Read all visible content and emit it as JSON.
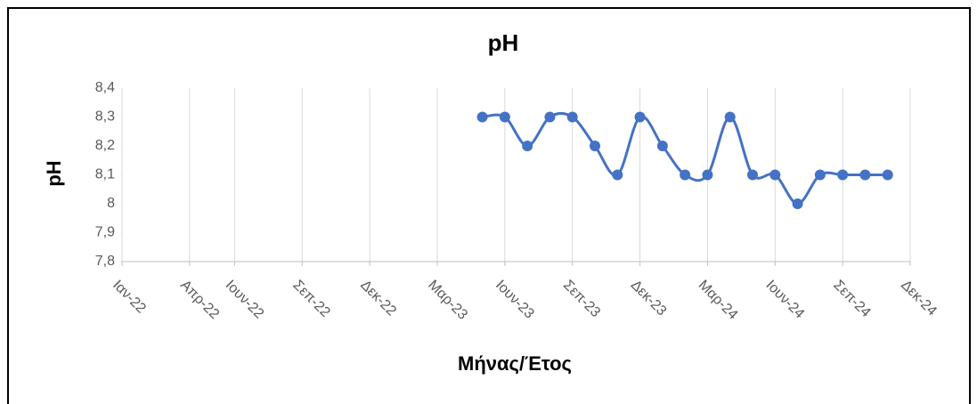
{
  "chart_data": {
    "type": "line",
    "title": "pH",
    "x_label": "Μήνας/Έτος",
    "y_label": "pH",
    "x": [
      "2023-05",
      "2023-06",
      "2023-07",
      "2023-08",
      "2023-09",
      "2023-10",
      "2023-11",
      "2023-12",
      "2024-01",
      "2024-02",
      "2024-03",
      "2024-04",
      "2024-05",
      "2024-06",
      "2024-07",
      "2024-08",
      "2024-09",
      "2024-10",
      "2024-11"
    ],
    "series": [
      {
        "name": "pH",
        "color": "#4472c4",
        "values": [
          8.3,
          8.3,
          8.2,
          8.3,
          8.3,
          8.2,
          8.1,
          8.3,
          8.2,
          8.1,
          8.1,
          8.3,
          8.1,
          8.1,
          8.0,
          8.1,
          8.1,
          8.1,
          8.1
        ]
      }
    ],
    "xlim": [
      "2022-01",
      "2024-12"
    ],
    "xticks": [
      {
        "value": "2022-01",
        "label": "Ιαν-22"
      },
      {
        "value": "2022-04",
        "label": "Απρ-22"
      },
      {
        "value": "2022-06",
        "label": "Ιουν-22"
      },
      {
        "value": "2022-09",
        "label": "Σεπ-22"
      },
      {
        "value": "2022-12",
        "label": "Δεκ-22"
      },
      {
        "value": "2023-03",
        "label": "Μαρ-23"
      },
      {
        "value": "2023-06",
        "label": "Ιουν-23"
      },
      {
        "value": "2023-09",
        "label": "Σεπ-23"
      },
      {
        "value": "2023-12",
        "label": "Δεκ-23"
      },
      {
        "value": "2024-03",
        "label": "Μαρ-24"
      },
      {
        "value": "2024-06",
        "label": "Ιουν-24"
      },
      {
        "value": "2024-09",
        "label": "Σεπ-24"
      },
      {
        "value": "2024-12",
        "label": "Δεκ-24"
      }
    ],
    "ylim": [
      7.8,
      8.4
    ],
    "yticks": [
      {
        "value": 7.8,
        "label": "7,8"
      },
      {
        "value": 7.9,
        "label": "7,9"
      },
      8,
      {
        "value": 8.1,
        "label": "8,1"
      },
      {
        "value": 8.2,
        "label": "8,2"
      },
      {
        "value": 8.3,
        "label": "8,3"
      },
      {
        "value": 8.4,
        "label": "8,4"
      }
    ],
    "grid": "x"
  }
}
